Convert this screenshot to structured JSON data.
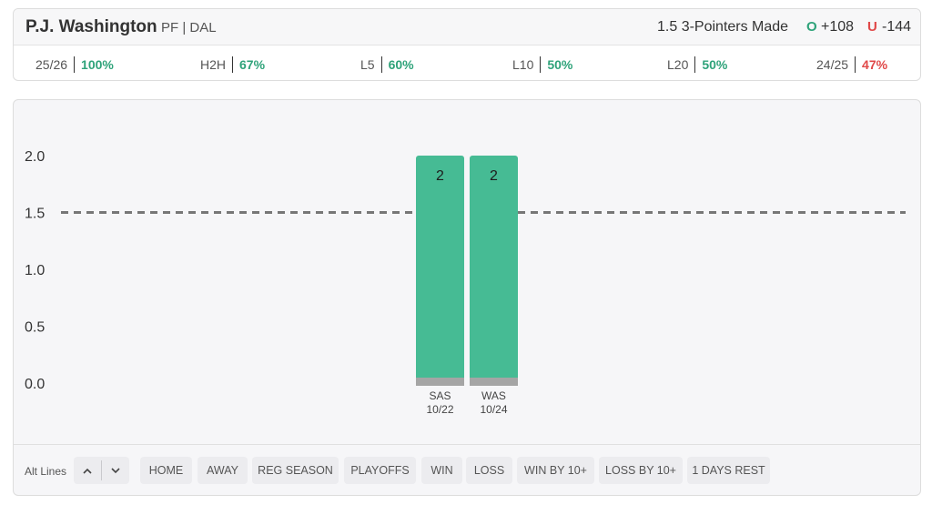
{
  "player": {
    "name": "P.J. Washington",
    "meta": "PF | DAL"
  },
  "market": {
    "label": "1.5 3-Pointers Made",
    "over_icon": "O",
    "over_odds": "+108",
    "under_icon": "U",
    "under_odds": "-144"
  },
  "stats": [
    {
      "label": "25/26",
      "value": "100%",
      "color": "#2fa37a"
    },
    {
      "label": "H2H",
      "value": "67%",
      "color": "#2fa37a"
    },
    {
      "label": "L5",
      "value": "60%",
      "color": "#2fa37a"
    },
    {
      "label": "L10",
      "value": "50%",
      "color": "#2fa37a"
    },
    {
      "label": "L20",
      "value": "50%",
      "color": "#2fa37a"
    },
    {
      "label": "24/25",
      "value": "47%",
      "color": "#e04848"
    }
  ],
  "chart_data": {
    "type": "bar",
    "categories": [
      "SAS 10/22",
      "WAS 10/24"
    ],
    "category_lines": [
      [
        "SAS",
        "10/22"
      ],
      [
        "WAS",
        "10/24"
      ]
    ],
    "values": [
      2,
      2
    ],
    "data_labels": [
      "2",
      "2"
    ],
    "line_value": 1.5,
    "ylim": [
      0,
      2.0
    ],
    "yticks": [
      "0.0",
      "0.5",
      "1.0",
      "1.5",
      "2.0"
    ],
    "ytick_values": [
      0,
      0.5,
      1.0,
      1.5,
      2.0
    ],
    "bar_color": "#46bb94",
    "bar_base_color": "#a5a5a5",
    "line_color": "#777777",
    "grid": false,
    "title": "",
    "xlabel": "",
    "ylabel": ""
  },
  "filters": {
    "alt_lines_label": "Alt Lines",
    "up_icon": "chevron-up-icon",
    "down_icon": "chevron-down-icon",
    "buttons": [
      "HOME",
      "AWAY",
      "REG SEASON",
      "PLAYOFFS",
      "WIN",
      "LOSS",
      "WIN BY 10+",
      "LOSS BY 10+",
      "1 DAYS REST"
    ]
  }
}
